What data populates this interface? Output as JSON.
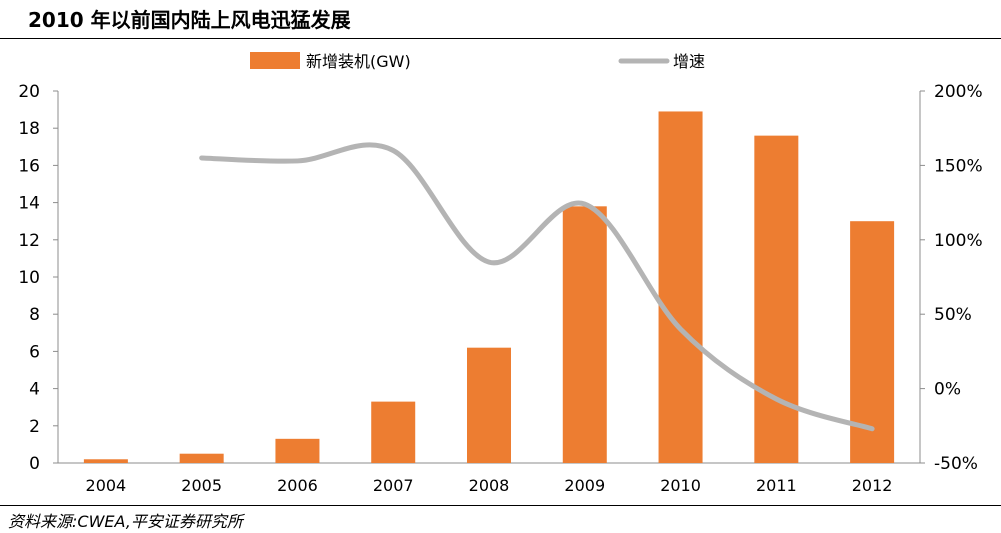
{
  "title": "2010 年以前国内陆上风电迅猛发展",
  "source": "资料来源:CWEA,平安证券研究所",
  "colors": {
    "bar": "#ED7D31",
    "line": "#B4B4B4",
    "axis": "#8C8C8C",
    "text": "#000000"
  },
  "chart_data": {
    "type": "bar",
    "categories": [
      "2004",
      "2005",
      "2006",
      "2007",
      "2008",
      "2009",
      "2010",
      "2011",
      "2012"
    ],
    "series": [
      {
        "name": "新增装机(GW)",
        "type": "bar",
        "axis": "left",
        "values": [
          0.2,
          0.5,
          1.3,
          3.3,
          6.2,
          13.8,
          18.9,
          17.6,
          13.0
        ]
      },
      {
        "name": "增速",
        "type": "line",
        "axis": "right",
        "unit": "%",
        "values": [
          null,
          155,
          153,
          160,
          85,
          124,
          40,
          -7,
          -27
        ]
      }
    ],
    "ylim_left": [
      0,
      20
    ],
    "yticks_left": [
      "0",
      "2",
      "4",
      "6",
      "8",
      "10",
      "12",
      "14",
      "16",
      "18",
      "20"
    ],
    "ylim_right": [
      -50,
      200
    ],
    "yticks_right": [
      "-50%",
      "0%",
      "50%",
      "100%",
      "150%",
      "200%"
    ],
    "legend_position": "top",
    "grid": false
  }
}
